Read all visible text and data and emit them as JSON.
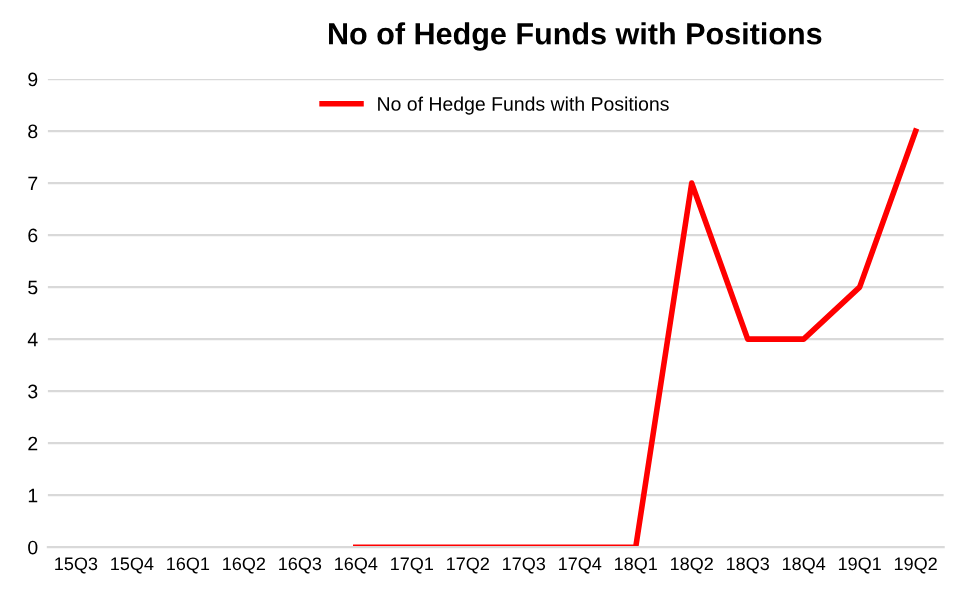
{
  "chart_data": {
    "type": "line",
    "title": "No of Hedge Funds with Positions",
    "categories": [
      "15Q3",
      "15Q4",
      "16Q1",
      "16Q2",
      "16Q3",
      "16Q4",
      "17Q1",
      "17Q2",
      "17Q3",
      "17Q4",
      "18Q1",
      "18Q2",
      "18Q3",
      "18Q4",
      "19Q1",
      "19Q2"
    ],
    "series": [
      {
        "name": "No of Hedge Funds with Positions",
        "color": "#ff0000",
        "values": [
          null,
          null,
          null,
          null,
          null,
          0,
          0,
          0,
          0,
          0,
          0,
          7,
          4,
          4,
          5,
          8
        ]
      }
    ],
    "ylim": [
      0,
      9
    ],
    "yticks": [
      0,
      1,
      2,
      3,
      4,
      5,
      6,
      7,
      8,
      9
    ],
    "grid": "y",
    "legend": "top",
    "marker": "none",
    "line_style": "solid"
  }
}
